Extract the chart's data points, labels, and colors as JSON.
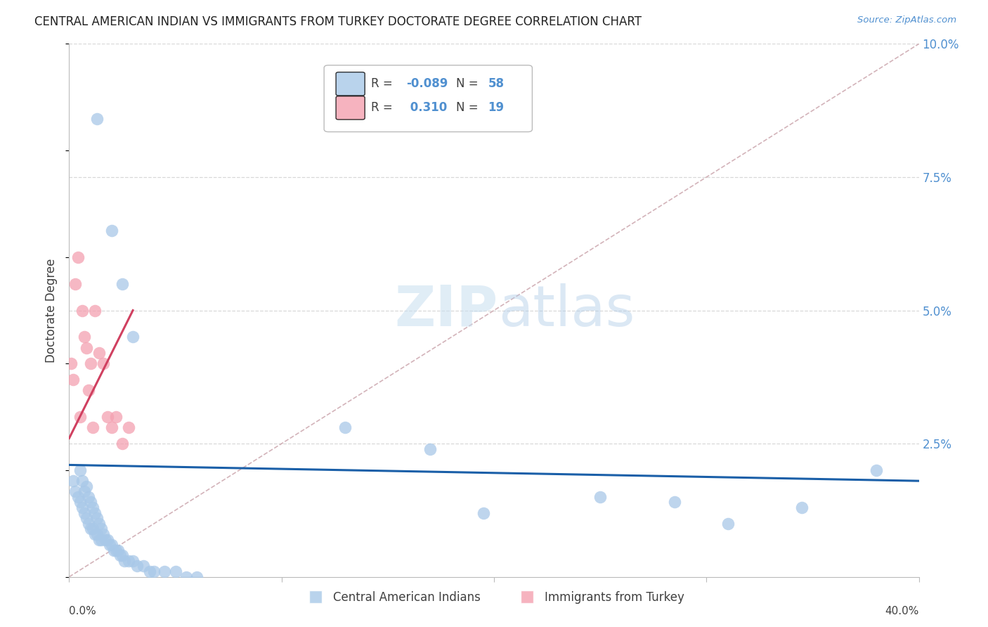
{
  "title": "CENTRAL AMERICAN INDIAN VS IMMIGRANTS FROM TURKEY DOCTORATE DEGREE CORRELATION CHART",
  "source": "Source: ZipAtlas.com",
  "ylabel": "Doctorate Degree",
  "xlim": [
    0.0,
    0.4
  ],
  "ylim": [
    0.0,
    0.1
  ],
  "yticks": [
    0.0,
    0.025,
    0.05,
    0.075,
    0.1
  ],
  "ytick_labels": [
    "",
    "2.5%",
    "5.0%",
    "7.5%",
    "10.0%"
  ],
  "xticks": [
    0.0,
    0.1,
    0.2,
    0.3,
    0.4
  ],
  "legend_blue_r": "-0.089",
  "legend_blue_n": "58",
  "legend_pink_r": "0.310",
  "legend_pink_n": "19",
  "blue_color": "#a8c8e8",
  "pink_color": "#f4a0b0",
  "blue_line_color": "#1a5fa8",
  "pink_line_color": "#d04060",
  "diag_line_color": "#c8a0a8",
  "grid_color": "#d8d8d8",
  "text_color": "#404040",
  "axis_label_color": "#5090d0",
  "blue_x": [
    0.002,
    0.003,
    0.004,
    0.005,
    0.005,
    0.006,
    0.006,
    0.007,
    0.007,
    0.008,
    0.008,
    0.009,
    0.009,
    0.01,
    0.01,
    0.011,
    0.011,
    0.012,
    0.012,
    0.013,
    0.013,
    0.014,
    0.014,
    0.015,
    0.015,
    0.016,
    0.017,
    0.018,
    0.019,
    0.02,
    0.021,
    0.022,
    0.023,
    0.024,
    0.025,
    0.026,
    0.028,
    0.03,
    0.032,
    0.035,
    0.038,
    0.04,
    0.045,
    0.05,
    0.055,
    0.06,
    0.013,
    0.02,
    0.025,
    0.03,
    0.195,
    0.25,
    0.285,
    0.31,
    0.345,
    0.38,
    0.13,
    0.17
  ],
  "blue_y": [
    0.018,
    0.016,
    0.015,
    0.02,
    0.014,
    0.018,
    0.013,
    0.016,
    0.012,
    0.017,
    0.011,
    0.015,
    0.01,
    0.014,
    0.009,
    0.013,
    0.009,
    0.012,
    0.008,
    0.011,
    0.008,
    0.01,
    0.007,
    0.009,
    0.007,
    0.008,
    0.007,
    0.007,
    0.006,
    0.006,
    0.005,
    0.005,
    0.005,
    0.004,
    0.004,
    0.003,
    0.003,
    0.003,
    0.002,
    0.002,
    0.001,
    0.001,
    0.001,
    0.001,
    0.0,
    0.0,
    0.086,
    0.065,
    0.055,
    0.045,
    0.012,
    0.015,
    0.014,
    0.01,
    0.013,
    0.02,
    0.028,
    0.024
  ],
  "pink_x": [
    0.001,
    0.002,
    0.003,
    0.004,
    0.005,
    0.006,
    0.007,
    0.008,
    0.009,
    0.01,
    0.011,
    0.012,
    0.014,
    0.016,
    0.018,
    0.02,
    0.022,
    0.025,
    0.028
  ],
  "pink_y": [
    0.04,
    0.037,
    0.055,
    0.06,
    0.03,
    0.05,
    0.045,
    0.043,
    0.035,
    0.04,
    0.028,
    0.05,
    0.042,
    0.04,
    0.03,
    0.028,
    0.03,
    0.025,
    0.028
  ],
  "blue_trend_x": [
    0.0,
    0.4
  ],
  "blue_trend_y": [
    0.021,
    0.018
  ],
  "pink_trend_x": [
    0.0,
    0.03
  ],
  "pink_trend_y": [
    0.026,
    0.05
  ]
}
